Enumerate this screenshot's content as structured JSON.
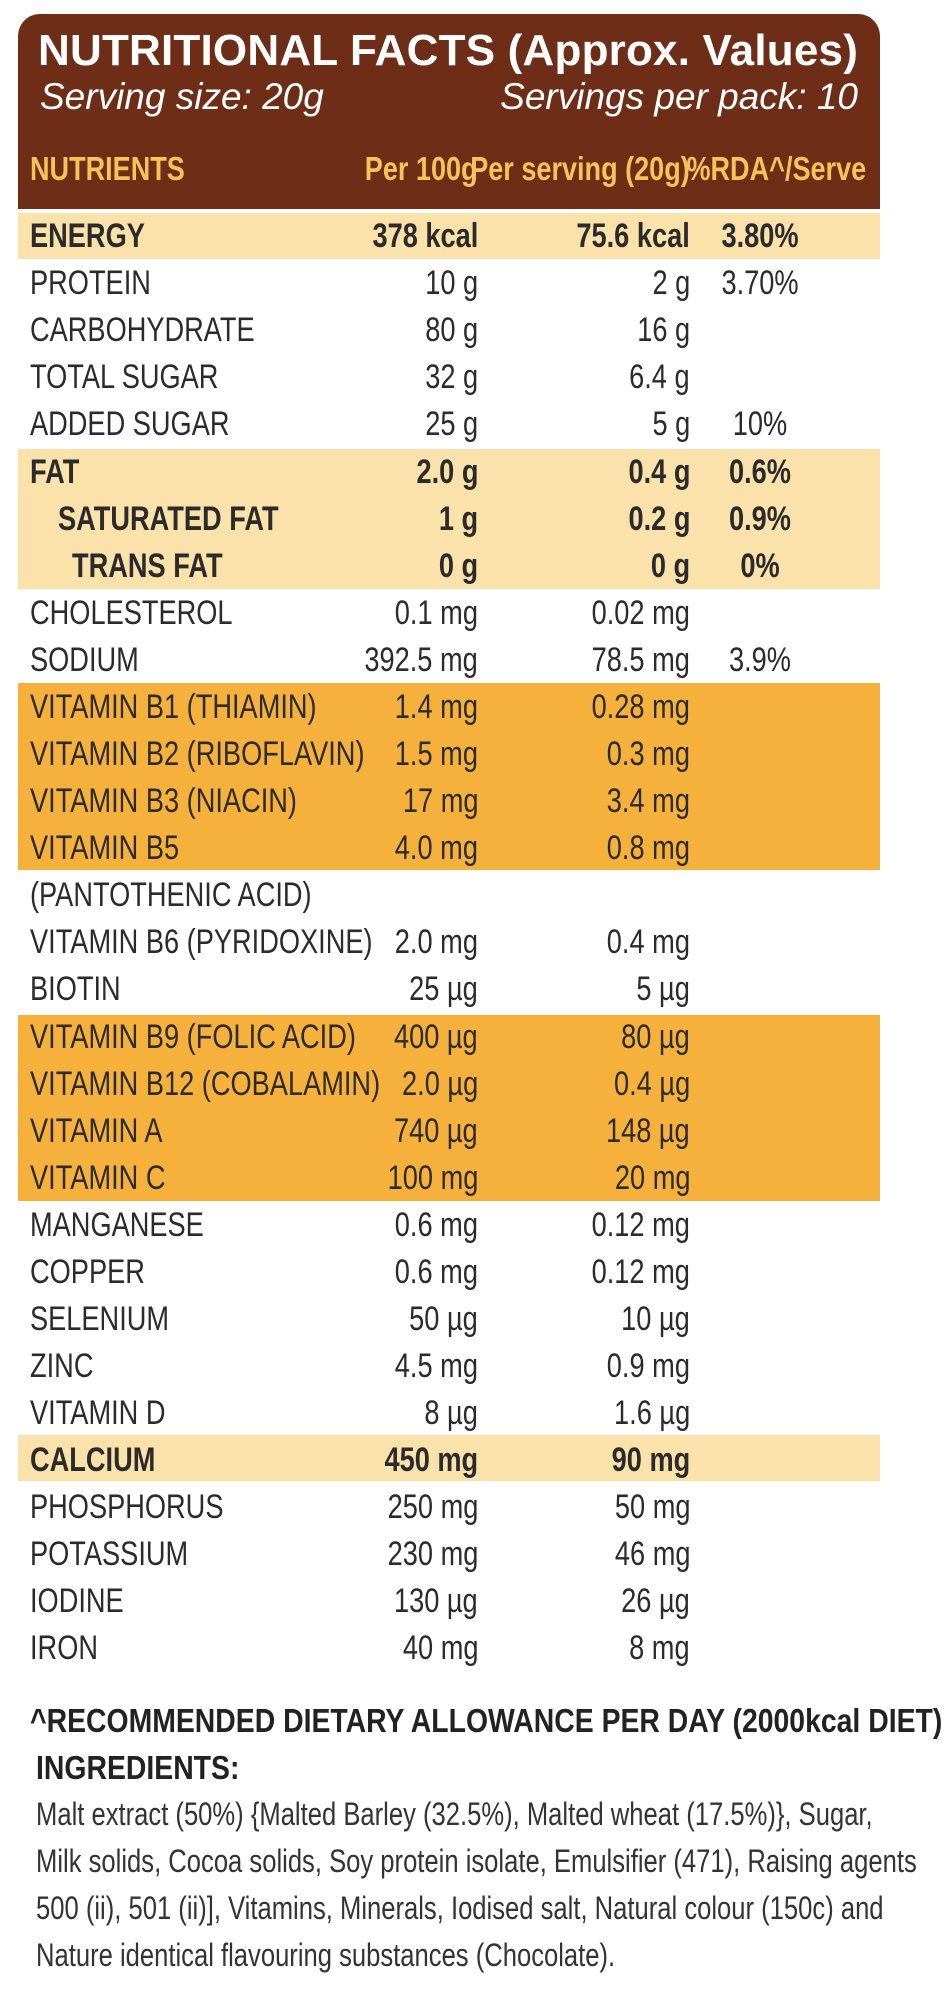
{
  "header": {
    "title": "NUTRITIONAL FACTS (Approx. Values)",
    "serving_size": "Serving size: 20g",
    "servings_per_pack": "Servings per pack: 10"
  },
  "columns": {
    "nutrients": "NUTRIENTS",
    "per100": "Per 100g",
    "per_serving": "Per serving (20g)",
    "rda": "%RDA^/Serve"
  },
  "rows": [
    {
      "name": "ENERGY",
      "per100": "378 kcal",
      "per_serving": "75.6 kcal",
      "rda": "3.80%"
    },
    {
      "name": "PROTEIN",
      "per100": "10 g",
      "per_serving": "2 g",
      "rda": "3.70%"
    },
    {
      "name": "CARBOHYDRATE",
      "per100": "80 g",
      "per_serving": "16 g",
      "rda": ""
    },
    {
      "name": "TOTAL SUGAR",
      "per100": "32 g",
      "per_serving": "6.4 g",
      "rda": ""
    },
    {
      "name": "ADDED SUGAR",
      "per100": "25 g",
      "per_serving": "5 g",
      "rda": "10%"
    },
    {
      "name": "FAT",
      "per100": "2.0 g",
      "per_serving": "0.4 g",
      "rda": "0.6%"
    },
    {
      "name": "SATURATED FAT",
      "per100": "1 g",
      "per_serving": "0.2 g",
      "rda": "0.9%"
    },
    {
      "name": "TRANS FAT",
      "per100": "0 g",
      "per_serving": "0 g",
      "rda": "0%"
    },
    {
      "name": "CHOLESTEROL",
      "per100": "0.1 mg",
      "per_serving": "0.02 mg",
      "rda": ""
    },
    {
      "name": "SODIUM",
      "per100": "392.5 mg",
      "per_serving": "78.5 mg",
      "rda": "3.9%"
    },
    {
      "name": "VITAMIN B1 (THIAMIN)",
      "per100": "1.4 mg",
      "per_serving": "0.28 mg",
      "rda": ""
    },
    {
      "name": "VITAMIN B2 (RIBOFLAVIN)",
      "per100": "1.5 mg",
      "per_serving": "0.3 mg",
      "rda": ""
    },
    {
      "name": "VITAMIN B3 (NIACIN)",
      "per100": "17 mg",
      "per_serving": "3.4 mg",
      "rda": ""
    },
    {
      "name": "VITAMIN B5",
      "per100": "4.0 mg",
      "per_serving": "0.8 mg",
      "rda": ""
    },
    {
      "name": "(PANTOTHENIC ACID)",
      "per100": "",
      "per_serving": "",
      "rda": ""
    },
    {
      "name": "VITAMIN B6 (PYRIDOXINE)",
      "per100": "2.0 mg",
      "per_serving": "0.4 mg",
      "rda": ""
    },
    {
      "name": "BIOTIN",
      "per100": "25 µg",
      "per_serving": "5 µg",
      "rda": ""
    },
    {
      "name": "VITAMIN B9 (FOLIC ACID)",
      "per100": "400 µg",
      "per_serving": "80 µg",
      "rda": ""
    },
    {
      "name": "VITAMIN B12 (COBALAMIN)",
      "per100": "2.0 µg",
      "per_serving": "0.4 µg",
      "rda": ""
    },
    {
      "name": "VITAMIN A",
      "per100": "740 µg",
      "per_serving": "148 µg",
      "rda": ""
    },
    {
      "name": "VITAMIN C",
      "per100": "100 mg",
      "per_serving": "20 mg",
      "rda": ""
    },
    {
      "name": "MANGANESE",
      "per100": "0.6 mg",
      "per_serving": "0.12 mg",
      "rda": ""
    },
    {
      "name": "COPPER",
      "per100": "0.6 mg",
      "per_serving": "0.12 mg",
      "rda": ""
    },
    {
      "name": "SELENIUM",
      "per100": "50 µg",
      "per_serving": "10 µg",
      "rda": ""
    },
    {
      "name": "ZINC",
      "per100": "4.5 mg",
      "per_serving": "0.9 mg",
      "rda": ""
    },
    {
      "name": "VITAMIN D",
      "per100": "8 µg",
      "per_serving": "1.6 µg",
      "rda": ""
    },
    {
      "name": "CALCIUM",
      "per100": "450 mg",
      "per_serving": "90 mg",
      "rda": ""
    },
    {
      "name": "PHOSPHORUS",
      "per100": "250 mg",
      "per_serving": "50 mg",
      "rda": ""
    },
    {
      "name": "POTASSIUM",
      "per100": "230 mg",
      "per_serving": "46 mg",
      "rda": ""
    },
    {
      "name": "IODINE",
      "per100": "130 µg",
      "per_serving": "26 µg",
      "rda": ""
    },
    {
      "name": "IRON",
      "per100": "40 mg",
      "per_serving": "8 mg",
      "rda": ""
    }
  ],
  "footnote": "^RECOMMENDED DIETARY ALLOWANCE PER DAY (2000kcal DIET)",
  "ingredients": {
    "title": "INGREDIENTS:",
    "lines": [
      "Malt extract (50%) {Malted Barley (32.5%), Malted wheat (17.5%)}, Sugar,",
      "Milk solids, Cocoa solids, Soy protein isolate, Emulsifier (471), Raising agents",
      "500 (ii), 501 (ii)], Vitamins, Minerals, Iodised salt, Natural colour (150c) and",
      "Nature identical flavouring substances (Chocolate)."
    ]
  },
  "colors": {
    "header_brown": "#6e2d16",
    "column_header_gold": "#f6c25a",
    "highlight_light": "#fbe2ab",
    "highlight_dark": "#f5b13b"
  }
}
